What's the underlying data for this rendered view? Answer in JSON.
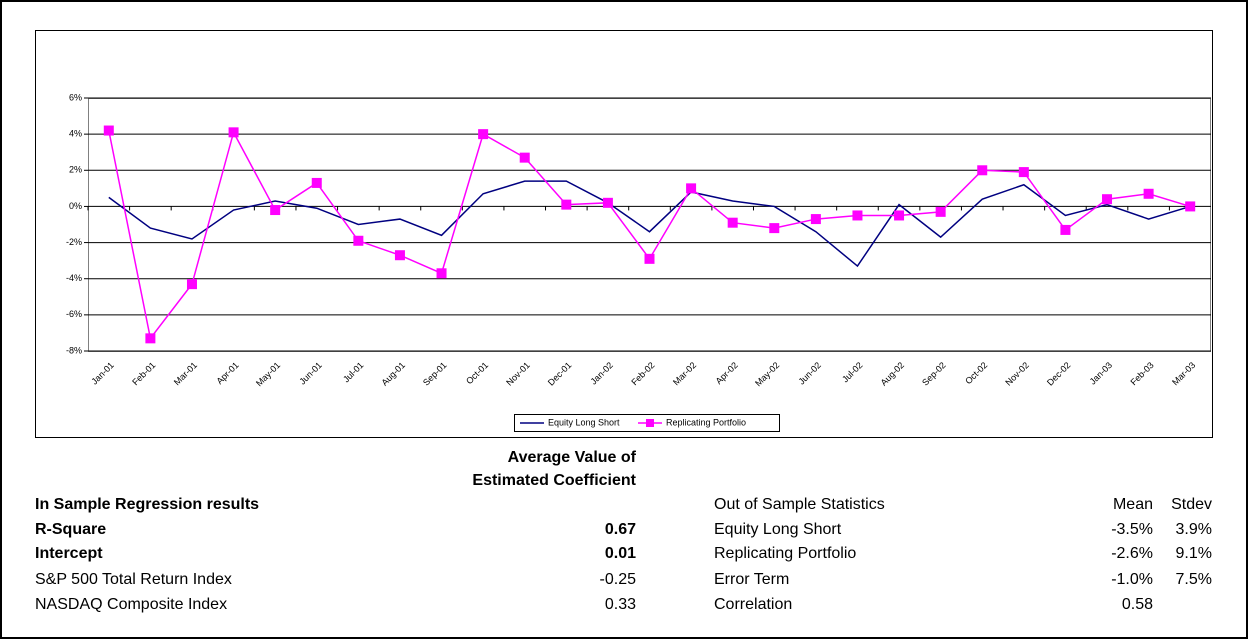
{
  "chart_data": {
    "type": "line",
    "categories": [
      "Jan-01",
      "Feb-01",
      "Mar-01",
      "Apr-01",
      "May-01",
      "Jun-01",
      "Jul-01",
      "Aug-01",
      "Sep-01",
      "Oct-01",
      "Nov-01",
      "Dec-01",
      "Jan-02",
      "Feb-02",
      "Mar-02",
      "Apr-02",
      "May-02",
      "Jun-02",
      "Jul-02",
      "Aug-02",
      "Sep-02",
      "Oct-02",
      "Nov-02",
      "Dec-02",
      "Jan-03",
      "Feb-03",
      "Mar-03"
    ],
    "series": [
      {
        "name": "Equity Long Short",
        "color": "#000080",
        "values": [
          0.5,
          -1.2,
          -1.8,
          -0.2,
          0.3,
          -0.1,
          -1.0,
          -0.7,
          -1.6,
          0.7,
          1.4,
          1.4,
          0.2,
          -1.4,
          0.8,
          0.3,
          0.0,
          -1.4,
          -3.3,
          0.1,
          -1.7,
          0.4,
          1.2,
          -0.5,
          0.1,
          -0.7,
          0.0
        ]
      },
      {
        "name": "Replicating Portfolio",
        "color": "#ff00ff",
        "values": [
          4.2,
          -7.3,
          -4.3,
          4.1,
          -0.2,
          1.3,
          -1.9,
          -2.7,
          -3.7,
          4.0,
          2.7,
          0.1,
          0.2,
          -2.9,
          1.0,
          -0.9,
          -1.2,
          -0.7,
          -0.5,
          -0.5,
          -0.3,
          2.0,
          1.9,
          -1.3,
          0.4,
          0.7,
          0.0
        ]
      }
    ],
    "ylim": [
      -8,
      6
    ],
    "yticks": [
      {
        "value": -8,
        "label": "-8%"
      },
      {
        "value": -6,
        "label": "-6%"
      },
      {
        "value": -4,
        "label": "-4%"
      },
      {
        "value": -2,
        "label": "-2%"
      },
      {
        "value": 0,
        "label": "0%"
      },
      {
        "value": 2,
        "label": "2%"
      },
      {
        "value": 4,
        "label": "4%"
      },
      {
        "value": 6,
        "label": "6%"
      }
    ],
    "grid": true,
    "legend": "bottom"
  },
  "regression": {
    "title": "In Sample Regression results",
    "column_header": [
      "Average Value of",
      "Estimated Coefficient"
    ],
    "rows": [
      [
        "R-Square",
        "0.67"
      ],
      [
        "Intercept",
        "0.01"
      ],
      [
        "S&P 500 Total Return Index",
        "-0.25"
      ],
      [
        "NASDAQ Composite Index",
        "0.33"
      ]
    ]
  },
  "out_of_sample": {
    "title": "Out of Sample Statistics",
    "columns": [
      "Mean",
      "Stdev"
    ],
    "rows": [
      [
        "Equity Long Short",
        "-3.5%",
        "3.9%"
      ],
      [
        "Replicating Portfolio",
        "-2.6%",
        "9.1%"
      ],
      [
        "Error Term",
        "-1.0%",
        "7.5%"
      ],
      [
        "Correlation",
        "0.58"
      ]
    ]
  }
}
